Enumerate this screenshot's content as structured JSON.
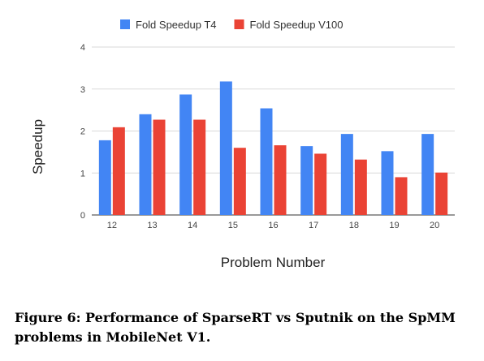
{
  "chart_data": {
    "type": "bar",
    "categories": [
      "12",
      "13",
      "14",
      "15",
      "16",
      "17",
      "18",
      "19",
      "20"
    ],
    "series": [
      {
        "name": "Fold Speedup T4",
        "color": "#4285f4",
        "values": [
          1.78,
          2.4,
          2.87,
          3.18,
          2.54,
          1.64,
          1.93,
          1.52,
          1.93
        ]
      },
      {
        "name": "Fold Speedup V100",
        "color": "#ea4335",
        "values": [
          2.09,
          2.27,
          2.27,
          1.6,
          1.66,
          1.46,
          1.32,
          0.9,
          1.01
        ]
      }
    ],
    "xlabel": "Problem Number",
    "ylabel": "Speedup",
    "ylim": [
      0,
      4
    ],
    "yticks": [
      "0",
      "1",
      "2",
      "3",
      "4"
    ],
    "grid": true,
    "legend_position": "top"
  },
  "caption": "Figure 6: Performance of SparseRT vs Sputnik on the SpMM problems in MobileNet V1."
}
